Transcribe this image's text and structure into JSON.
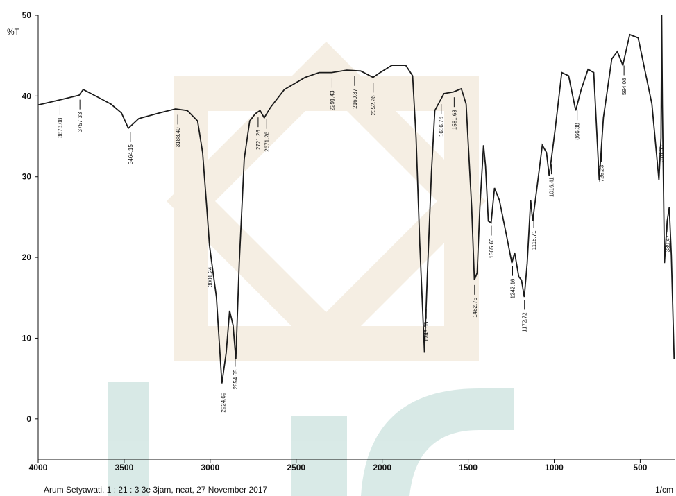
{
  "chart_data": {
    "type": "line",
    "y_label": "%T",
    "x_label": "1/cm",
    "footer": "Arum Setyawati, 1 : 21 : 3 3e 3jam, neat, 27 November 2017",
    "color": "#1a1a1a",
    "xlim": [
      4000,
      300
    ],
    "ylim": [
      -5,
      50
    ],
    "xticks": [
      4000,
      3500,
      3000,
      2500,
      2000,
      1500,
      1000,
      500
    ],
    "yticks": [
      0,
      10,
      20,
      30,
      40,
      50
    ],
    "x": [
      4000,
      3879,
      3762,
      3738,
      3657,
      3577,
      3516,
      3476,
      3415,
      3294,
      3202,
      3133,
      3073,
      3044,
      3020,
      3004,
      2988,
      2964,
      2932,
      2907,
      2887,
      2867,
      2851,
      2831,
      2802,
      2770,
      2738,
      2710,
      2686,
      2649,
      2569,
      2448,
      2367,
      2294,
      2206,
      2125,
      2053,
      2012,
      1944,
      1863,
      1823,
      1803,
      1782,
      1754,
      1738,
      1714,
      1694,
      1674,
      1641,
      1585,
      1540,
      1512,
      1480,
      1464,
      1448,
      1432,
      1411,
      1399,
      1383,
      1367,
      1347,
      1319,
      1278,
      1246,
      1230,
      1206,
      1190,
      1174,
      1157,
      1137,
      1125,
      1097,
      1069,
      1045,
      1029,
      996,
      956,
      916,
      875,
      843,
      803,
      770,
      738,
      714,
      665,
      633,
      601,
      561,
      512,
      432,
      391,
      379,
      375,
      371,
      359,
      343,
      331,
      319,
      303
    ],
    "values": [
      38.9,
      39.5,
      40.1,
      40.8,
      39.9,
      39.0,
      37.9,
      36.0,
      37.2,
      37.9,
      38.4,
      38.2,
      36.9,
      33.0,
      26.2,
      21.5,
      18.9,
      15.1,
      4.4,
      8.2,
      13.4,
      11.6,
      7.4,
      19.3,
      32.2,
      36.9,
      37.8,
      38.2,
      37.3,
      38.6,
      40.8,
      42.3,
      42.9,
      42.9,
      43.2,
      43.1,
      42.3,
      42.9,
      43.8,
      43.8,
      42.5,
      34.8,
      21.9,
      8.2,
      17.6,
      30.5,
      38.2,
      39.0,
      40.3,
      40.5,
      40.9,
      39.0,
      26.2,
      17.2,
      18.1,
      26.2,
      33.9,
      31.3,
      24.5,
      24.3,
      28.6,
      27.1,
      22.8,
      19.3,
      20.6,
      17.6,
      17.2,
      15.1,
      19.3,
      27.1,
      24.5,
      29.2,
      33.9,
      33.0,
      30.1,
      35.6,
      42.9,
      42.5,
      38.2,
      40.8,
      43.3,
      42.9,
      29.6,
      37.3,
      44.6,
      45.5,
      43.8,
      47.6,
      47.2,
      39.0,
      29.6,
      34.8,
      50.0,
      39.0,
      19.3,
      24.5,
      26.2,
      20.2,
      7.4
    ],
    "peaks": [
      {
        "value": 3873.08,
        "label": "3873.08"
      },
      {
        "value": 3757.33,
        "label": "3757.33"
      },
      {
        "value": 3464.15,
        "label": "3464.15"
      },
      {
        "value": 3188.4,
        "label": "3188.40"
      },
      {
        "value": 3001.24,
        "label": "3001.24"
      },
      {
        "value": 2924.69,
        "label": "2924.69"
      },
      {
        "value": 2854.65,
        "label": "2854.65"
      },
      {
        "value": 2721.26,
        "label": "2721.26"
      },
      {
        "value": 2671.26,
        "label": "2671.26"
      },
      {
        "value": 2291.43,
        "label": "2291.43"
      },
      {
        "value": 2160.37,
        "label": "2160.37"
      },
      {
        "value": 2052.26,
        "label": "2052.26"
      },
      {
        "value": 1743.65,
        "label": "1743.65"
      },
      {
        "value": 1656.76,
        "label": "1656.76"
      },
      {
        "value": 1581.63,
        "label": "1581.63"
      },
      {
        "value": 1462.75,
        "label": "1462.75"
      },
      {
        "value": 1365.6,
        "label": "1365.60"
      },
      {
        "value": 1242.16,
        "label": "1242.16"
      },
      {
        "value": 1172.72,
        "label": "1172.72"
      },
      {
        "value": 1118.71,
        "label": "1118.71"
      },
      {
        "value": 1016.41,
        "label": "1016.41"
      },
      {
        "value": 866.38,
        "label": "866.38"
      },
      {
        "value": 725.23,
        "label": "725.23"
      },
      {
        "value": 594.08,
        "label": "594.08"
      },
      {
        "value": 378.65,
        "label": "378.65"
      },
      {
        "value": 339.47,
        "label": "339.47"
      }
    ]
  }
}
